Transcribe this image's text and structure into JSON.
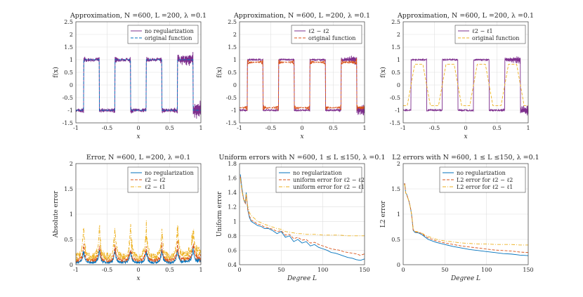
{
  "chart_data": [
    {
      "type": "line",
      "title": "Approximation, N =600, L =200, λ =0.1",
      "xlabel": "x",
      "ylabel": "f(x)",
      "xlim": [
        -1,
        1
      ],
      "ylim": [
        -1.5,
        2.5
      ],
      "xticks": [
        -1,
        -0.5,
        0,
        0.5,
        1
      ],
      "xtick_labels": [
        "-1",
        "-0.5",
        "0",
        "0.5",
        "1"
      ],
      "yticks": [
        -1.5,
        -1,
        -0.5,
        0,
        0.5,
        1,
        1.5,
        2,
        2.5
      ],
      "ytick_labels": [
        "-1.5",
        "-1",
        "-0.5",
        "0",
        "0.5",
        "1",
        "1.5",
        "2",
        "2.5"
      ],
      "legend_position": "top-right",
      "series": [
        {
          "name": "no regularization",
          "color": "#7E2F8E",
          "style": "solid",
          "kind": "fit",
          "level": 1.0,
          "noise": 0.06,
          "tail": 0.28
        },
        {
          "name": "original function",
          "color": "#0072BD",
          "style": "dashed",
          "kind": "square"
        }
      ]
    },
    {
      "type": "line",
      "title": "Approximation, N =600, L =200, λ =0.1",
      "legend_labels": [
        "ℓ2 − ℓ2"
      ],
      "xlabel": "x",
      "ylabel": "f(x)",
      "xlim": [
        -1,
        1
      ],
      "ylim": [
        -1.5,
        2.5
      ],
      "xticks": [
        -1,
        -0.5,
        0,
        0.5,
        1
      ],
      "xtick_labels": [
        "-1",
        "-0.5",
        "0",
        "0.5",
        "1"
      ],
      "yticks": [
        -1.5,
        -1,
        -0.5,
        0,
        0.5,
        1,
        1.5,
        2,
        2.5
      ],
      "ytick_labels": [
        "-1.5",
        "-1",
        "-0.5",
        "0",
        "0.5",
        "1",
        "1.5",
        "2",
        "2.5"
      ],
      "legend_position": "top-right",
      "series": [
        {
          "name": "ℓ2 − ℓ2",
          "color": "#7E2F8E",
          "style": "solid",
          "kind": "square_noisy",
          "noise": 0.03,
          "tail": 0.18
        },
        {
          "name": "original function",
          "color": "#D95319",
          "style": "dashed",
          "kind": "fit",
          "level": 0.9,
          "noise": 0.01,
          "tail": 0.05
        }
      ]
    },
    {
      "type": "line",
      "title": "Approximation, N =600, L =200, λ =0.1",
      "legend_labels": [
        "ℓ2 − ℓ1"
      ],
      "xlabel": "x",
      "ylabel": "f(x)",
      "xlim": [
        -1,
        1
      ],
      "ylim": [
        -1.5,
        2.5
      ],
      "xticks": [
        -1,
        -0.5,
        0,
        0.5,
        1
      ],
      "xtick_labels": [
        "-1",
        "-0.5",
        "0",
        "0.5",
        "1"
      ],
      "yticks": [
        -1.5,
        -1,
        -0.5,
        0,
        0.5,
        1,
        1.5,
        2,
        2.5
      ],
      "ytick_labels": [
        "-1.5",
        "-1",
        "-0.5",
        "0",
        "0.5",
        "1",
        "1.5",
        "2",
        "2.5"
      ],
      "legend_position": "top-right",
      "series": [
        {
          "name": "ℓ2 − ℓ1",
          "color": "#7E2F8E",
          "style": "solid",
          "kind": "square_noisy",
          "noise": 0.03,
          "tail": 0.18
        },
        {
          "name": "original function",
          "color": "#EDB120",
          "style": "dashed",
          "kind": "smooth",
          "level": 0.82
        }
      ]
    },
    {
      "type": "line",
      "title": "Error, N =600, L =200, λ =0.1",
      "xlabel": "x",
      "ylabel": "Absolute error",
      "xlim": [
        -1,
        1
      ],
      "ylim": [
        0,
        2
      ],
      "xticks": [
        -1,
        -0.5,
        0,
        0.5,
        1
      ],
      "xtick_labels": [
        "-1",
        "-0.5",
        "0",
        "0.5",
        "1"
      ],
      "yticks": [
        0,
        0.5,
        1,
        1.5,
        2
      ],
      "ytick_labels": [
        "0",
        "0.5",
        "1",
        "1.5",
        "2"
      ],
      "legend_position": "top-right",
      "series": [
        {
          "name": "no regularization",
          "color": "#0072BD",
          "style": "solid",
          "base": 0.05,
          "peak": 0.3
        },
        {
          "name": "ℓ2 − ℓ2",
          "color": "#D95319",
          "style": "dashed",
          "base": 0.1,
          "peak": 0.35
        },
        {
          "name": "ℓ2 − ℓ1",
          "color": "#EDB120",
          "style": "dashdot",
          "base": 0.18,
          "peak": 0.68
        }
      ]
    },
    {
      "type": "line",
      "title": "Uniform errors with N =600, 1 ≤ L ≤150, λ =0.1",
      "xlabel": "Degree L",
      "ylabel": "Uniform error",
      "xlim": [
        0,
        150
      ],
      "ylim": [
        0.4,
        1.8
      ],
      "xticks": [
        0,
        50,
        100,
        150
      ],
      "xtick_labels": [
        "0",
        "50",
        "100",
        "150"
      ],
      "yticks": [
        0.4,
        0.6,
        0.8,
        1,
        1.2,
        1.4,
        1.6,
        1.8
      ],
      "ytick_labels": [
        "0.4",
        "0.6",
        "0.8",
        "1",
        "1.2",
        "1.4",
        "1.6",
        "1.8"
      ],
      "legend_position": "top-right",
      "legend_labels": [
        "no regularization",
        "uniform error for ℓ2 − ℓ2",
        "uniform error for ℓ2 − ℓ1"
      ],
      "series": [
        {
          "name": "no regularization",
          "color": "#0072BD",
          "style": "solid",
          "x": [
            1,
            2,
            3,
            5,
            7,
            8,
            10,
            12,
            14,
            18,
            22,
            26,
            30,
            35,
            40,
            45,
            50,
            55,
            60,
            65,
            70,
            75,
            80,
            85,
            90,
            95,
            100,
            105,
            110,
            115,
            120,
            125,
            130,
            135,
            140,
            145,
            150
          ],
          "y": [
            1.65,
            1.55,
            1.45,
            1.3,
            1.25,
            1.4,
            1.15,
            1.05,
            1.0,
            0.97,
            0.94,
            0.93,
            0.9,
            0.9,
            0.87,
            0.83,
            0.86,
            0.78,
            0.8,
            0.72,
            0.75,
            0.7,
            0.72,
            0.66,
            0.68,
            0.64,
            0.62,
            0.6,
            0.57,
            0.56,
            0.54,
            0.52,
            0.5,
            0.49,
            0.47,
            0.46,
            0.48
          ]
        },
        {
          "name": "uniform error for ℓ2 − ℓ2",
          "color": "#D95319",
          "style": "dashed",
          "x": [
            1,
            2,
            3,
            5,
            7,
            8,
            10,
            12,
            14,
            18,
            22,
            26,
            30,
            35,
            40,
            45,
            50,
            55,
            60,
            65,
            70,
            75,
            80,
            85,
            90,
            95,
            100,
            105,
            110,
            115,
            120,
            125,
            130,
            135,
            140,
            145,
            150
          ],
          "y": [
            1.62,
            1.52,
            1.42,
            1.3,
            1.25,
            1.38,
            1.16,
            1.07,
            1.02,
            0.99,
            0.96,
            0.95,
            0.92,
            0.91,
            0.89,
            0.86,
            0.87,
            0.81,
            0.82,
            0.76,
            0.78,
            0.74,
            0.75,
            0.7,
            0.71,
            0.68,
            0.66,
            0.64,
            0.62,
            0.61,
            0.6,
            0.58,
            0.57,
            0.56,
            0.55,
            0.53,
            0.55
          ]
        },
        {
          "name": "uniform error for ℓ2 − ℓ1",
          "color": "#EDB120",
          "style": "dashdot",
          "x": [
            1,
            2,
            3,
            5,
            7,
            8,
            10,
            12,
            14,
            18,
            22,
            26,
            30,
            35,
            40,
            45,
            50,
            55,
            60,
            65,
            70,
            75,
            80,
            90,
            100,
            110,
            120,
            130,
            140,
            150
          ],
          "y": [
            1.6,
            1.5,
            1.42,
            1.3,
            1.28,
            1.38,
            1.2,
            1.12,
            1.08,
            1.04,
            1.0,
            0.98,
            0.96,
            0.94,
            0.92,
            0.9,
            0.89,
            0.86,
            0.85,
            0.84,
            0.83,
            0.83,
            0.82,
            0.82,
            0.81,
            0.81,
            0.81,
            0.8,
            0.8,
            0.8
          ]
        }
      ]
    },
    {
      "type": "line",
      "title": "L2 errors with N =600, 1 ≤ L ≤150, λ =0.1",
      "xlabel": "Degree L",
      "ylabel": "L2 error",
      "xlim": [
        0,
        150
      ],
      "ylim": [
        0,
        2
      ],
      "xticks": [
        0,
        50,
        100,
        150
      ],
      "xtick_labels": [
        "0",
        "50",
        "100",
        "150"
      ],
      "yticks": [
        0,
        0.5,
        1,
        1.5,
        2
      ],
      "ytick_labels": [
        "0",
        "0.5",
        "1",
        "1.5",
        "2"
      ],
      "legend_position": "top-right",
      "legend_labels": [
        "no regularization",
        "L2 error for ℓ2 − ℓ2",
        "L2 error for ℓ2 − ℓ1"
      ],
      "series": [
        {
          "name": "no regularization",
          "color": "#0072BD",
          "style": "solid",
          "x": [
            1,
            2,
            3,
            4,
            5,
            6,
            7,
            8,
            9,
            10,
            11,
            12,
            14,
            18,
            22,
            26,
            30,
            35,
            40,
            50,
            60,
            70,
            80,
            90,
            100,
            110,
            120,
            130,
            140,
            150
          ],
          "y": [
            1.6,
            1.6,
            1.42,
            1.4,
            1.35,
            1.3,
            1.25,
            1.18,
            1.1,
            1.0,
            0.85,
            0.68,
            0.64,
            0.63,
            0.6,
            0.55,
            0.5,
            0.47,
            0.44,
            0.4,
            0.36,
            0.33,
            0.3,
            0.28,
            0.26,
            0.24,
            0.22,
            0.21,
            0.19,
            0.18
          ]
        },
        {
          "name": "L2 error for ℓ2 − ℓ2",
          "color": "#D95319",
          "style": "dashed",
          "x": [
            1,
            2,
            3,
            4,
            5,
            6,
            7,
            8,
            9,
            10,
            11,
            12,
            14,
            18,
            22,
            26,
            30,
            35,
            40,
            50,
            60,
            70,
            80,
            90,
            100,
            110,
            120,
            130,
            140,
            150
          ],
          "y": [
            1.6,
            1.6,
            1.42,
            1.4,
            1.35,
            1.3,
            1.25,
            1.18,
            1.1,
            1.0,
            0.86,
            0.69,
            0.65,
            0.64,
            0.62,
            0.57,
            0.53,
            0.5,
            0.47,
            0.43,
            0.4,
            0.37,
            0.35,
            0.33,
            0.31,
            0.29,
            0.28,
            0.27,
            0.25,
            0.24
          ]
        },
        {
          "name": "L2 error for ℓ2 − ℓ1",
          "color": "#EDB120",
          "style": "dashdot",
          "x": [
            1,
            2,
            3,
            4,
            5,
            6,
            7,
            8,
            9,
            10,
            11,
            12,
            14,
            18,
            22,
            26,
            30,
            35,
            40,
            50,
            60,
            70,
            80,
            90,
            100,
            110,
            120,
            130,
            140,
            150
          ],
          "y": [
            1.58,
            1.58,
            1.42,
            1.4,
            1.35,
            1.3,
            1.25,
            1.18,
            1.1,
            1.0,
            0.87,
            0.7,
            0.66,
            0.65,
            0.63,
            0.59,
            0.56,
            0.53,
            0.5,
            0.47,
            0.45,
            0.43,
            0.42,
            0.41,
            0.41,
            0.4,
            0.4,
            0.4,
            0.39,
            0.39
          ]
        }
      ]
    }
  ]
}
